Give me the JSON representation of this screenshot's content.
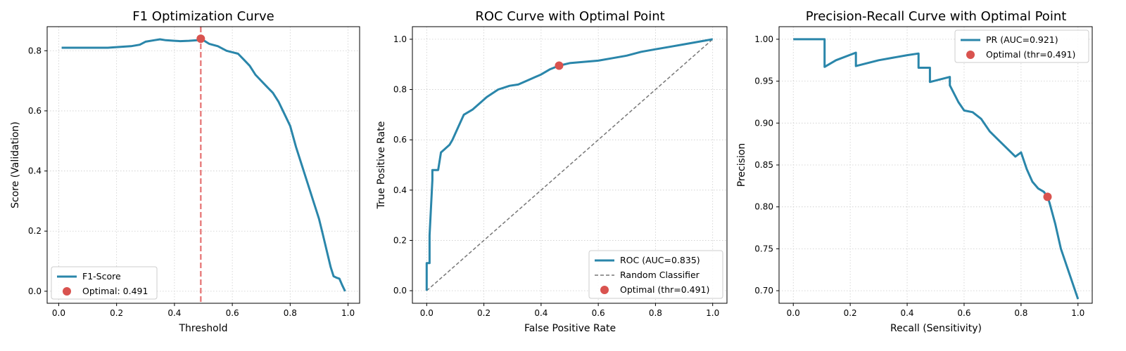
{
  "colors": {
    "curve": "#2a86aa",
    "optimal": "#d9534f",
    "vline": "#e88080",
    "random": "#777777",
    "grid": "#cccccc"
  },
  "chart_data": [
    {
      "type": "line",
      "title": "F1 Optimization Curve",
      "xlabel": "Threshold",
      "ylabel": "Score (Validation)",
      "xlim": [
        -0.04,
        1.04
      ],
      "ylim": [
        -0.04,
        0.88
      ],
      "xticks": [
        0.0,
        0.2,
        0.4,
        0.6,
        0.8,
        1.0
      ],
      "yticks": [
        0.0,
        0.2,
        0.4,
        0.6,
        0.8
      ],
      "grid": true,
      "legend_position": "lower-left",
      "series": [
        {
          "name": "F1-Score",
          "x": [
            0.01,
            0.05,
            0.1,
            0.15,
            0.17,
            0.2,
            0.25,
            0.28,
            0.3,
            0.33,
            0.35,
            0.37,
            0.4,
            0.42,
            0.45,
            0.48,
            0.491,
            0.5,
            0.52,
            0.55,
            0.58,
            0.6,
            0.62,
            0.64,
            0.66,
            0.68,
            0.7,
            0.72,
            0.74,
            0.76,
            0.78,
            0.8,
            0.82,
            0.84,
            0.86,
            0.87,
            0.88,
            0.89,
            0.9,
            0.91,
            0.92,
            0.93,
            0.94,
            0.95,
            0.96,
            0.97,
            0.98,
            0.99
          ],
          "y": [
            0.81,
            0.81,
            0.81,
            0.81,
            0.81,
            0.812,
            0.815,
            0.82,
            0.83,
            0.835,
            0.838,
            0.835,
            0.833,
            0.832,
            0.833,
            0.835,
            0.84,
            0.835,
            0.823,
            0.815,
            0.8,
            0.795,
            0.79,
            0.77,
            0.75,
            0.72,
            0.7,
            0.68,
            0.66,
            0.63,
            0.59,
            0.55,
            0.48,
            0.42,
            0.36,
            0.33,
            0.3,
            0.27,
            0.24,
            0.2,
            0.16,
            0.12,
            0.08,
            0.05,
            0.045,
            0.042,
            0.02,
            0.0
          ]
        }
      ],
      "optimal": {
        "label": "Optimal: 0.491",
        "x": 0.491,
        "y": 0.84
      }
    },
    {
      "type": "line",
      "title": "ROC Curve with Optimal Point",
      "xlabel": "False Positive Rate",
      "ylabel": "True Positive Rate",
      "xlim": [
        -0.05,
        1.05
      ],
      "ylim": [
        -0.05,
        1.05
      ],
      "xticks": [
        0.0,
        0.2,
        0.4,
        0.6,
        0.8,
        1.0
      ],
      "yticks": [
        0.0,
        0.2,
        0.4,
        0.6,
        0.8,
        1.0
      ],
      "grid": true,
      "legend_position": "lower-right",
      "series": [
        {
          "name": "ROC (AUC=0.835)",
          "x": [
            0.0,
            0.0,
            0.01,
            0.01,
            0.02,
            0.02,
            0.04,
            0.05,
            0.06,
            0.08,
            0.09,
            0.11,
            0.13,
            0.16,
            0.19,
            0.21,
            0.25,
            0.29,
            0.32,
            0.36,
            0.4,
            0.43,
            0.463,
            0.5,
            0.55,
            0.6,
            0.65,
            0.7,
            0.75,
            0.8,
            0.85,
            0.9,
            0.95,
            1.0
          ],
          "y": [
            0.0,
            0.11,
            0.11,
            0.22,
            0.44,
            0.48,
            0.48,
            0.55,
            0.56,
            0.58,
            0.6,
            0.65,
            0.7,
            0.72,
            0.75,
            0.77,
            0.8,
            0.815,
            0.82,
            0.84,
            0.86,
            0.88,
            0.895,
            0.905,
            0.91,
            0.915,
            0.925,
            0.935,
            0.95,
            0.96,
            0.97,
            0.98,
            0.99,
            1.0
          ]
        },
        {
          "name": "Random Classifier",
          "x": [
            0.0,
            1.0
          ],
          "y": [
            0.0,
            1.0
          ]
        }
      ],
      "optimal": {
        "label": "Optimal (thr=0.491)",
        "x": 0.463,
        "y": 0.895
      }
    },
    {
      "type": "line",
      "title": "Precision-Recall Curve with Optimal Point",
      "xlabel": "Recall (Sensitivity)",
      "ylabel": "Precision",
      "xlim": [
        -0.05,
        1.05
      ],
      "ylim": [
        0.685,
        1.015
      ],
      "xticks": [
        0.0,
        0.2,
        0.4,
        0.6,
        0.8,
        1.0
      ],
      "yticks": [
        0.7,
        0.75,
        0.8,
        0.85,
        0.9,
        0.95,
        1.0
      ],
      "grid": true,
      "legend_position": "top-right",
      "series": [
        {
          "name": "PR (AUC=0.921)",
          "x": [
            0.0,
            0.11,
            0.11,
            0.15,
            0.22,
            0.22,
            0.3,
            0.4,
            0.44,
            0.44,
            0.48,
            0.48,
            0.55,
            0.55,
            0.58,
            0.6,
            0.63,
            0.66,
            0.69,
            0.72,
            0.75,
            0.78,
            0.8,
            0.82,
            0.84,
            0.86,
            0.88,
            0.893,
            0.9,
            0.92,
            0.94,
            0.96,
            0.98,
            1.0
          ],
          "y": [
            1.0,
            1.0,
            0.967,
            0.975,
            0.984,
            0.968,
            0.975,
            0.981,
            0.983,
            0.966,
            0.966,
            0.949,
            0.955,
            0.945,
            0.925,
            0.915,
            0.913,
            0.905,
            0.89,
            0.88,
            0.87,
            0.86,
            0.865,
            0.845,
            0.83,
            0.822,
            0.818,
            0.812,
            0.805,
            0.78,
            0.75,
            0.73,
            0.71,
            0.69
          ]
        }
      ],
      "optimal": {
        "label": "Optimal (thr=0.491)",
        "x": 0.893,
        "y": 0.812
      }
    }
  ]
}
